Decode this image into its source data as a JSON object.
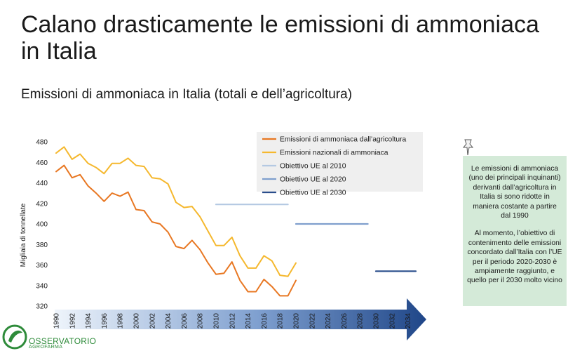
{
  "slide": {
    "title": "Calano drasticamente le emissioni di ammoniaca in Italia",
    "subtitle": "Emissioni di ammoniaca in Italia (totali e dell’agricoltura)"
  },
  "note": {
    "paragraph1": "Le emissioni di ammoniaca (uno dei principali inquinanti) derivanti dall’agricoltura in Italia si sono ridotte in maniera costante a partire dal 1990",
    "paragraph2": "Al momento, l’obiettivo di contenimento delle emissioni concordato dall’Italia con l’UE per il periodo 2020-2030 è ampiamente raggiunto, e quello per il 2030 molto vicino"
  },
  "logo": {
    "name": "OSSERVATORIO",
    "subname": "AGROFARMA"
  },
  "colors": {
    "agri": "#e87722",
    "total": "#f5b82e",
    "t2010": "#b4c9e2",
    "t2020": "#7f9fcd",
    "t2030": "#2a4e8c",
    "note_bg": "#d4ead8",
    "logo_green": "#2e8b3a"
  },
  "chart_data": {
    "type": "line",
    "title": "",
    "xlabel": "",
    "ylabel": "Migliaia di tonnellate",
    "xlim": [
      1990,
      2034
    ],
    "ylim": [
      320,
      480
    ],
    "x_ticks": [
      1990,
      1992,
      1994,
      1996,
      1998,
      2000,
      2002,
      2004,
      2006,
      2008,
      2010,
      2012,
      2014,
      2016,
      2018,
      2020,
      2022,
      2024,
      2026,
      2028,
      2030,
      2032,
      2034
    ],
    "y_ticks": [
      320,
      340,
      360,
      380,
      400,
      420,
      440,
      460,
      480
    ],
    "legend_position": "top-right",
    "series": [
      {
        "name": "Emissioni di ammoniaca dall’agricoltura",
        "color": "#e87722",
        "x": [
          1990,
          1991,
          1992,
          1993,
          1994,
          1995,
          1996,
          1997,
          1998,
          1999,
          2000,
          2001,
          2002,
          2003,
          2004,
          2005,
          2006,
          2007,
          2008,
          2009,
          2010,
          2011,
          2012,
          2013,
          2014,
          2015,
          2016,
          2017,
          2018,
          2019,
          2020
        ],
        "values": [
          451,
          457,
          445,
          448,
          437,
          430,
          422,
          430,
          427,
          431,
          414,
          413,
          402,
          400,
          392,
          378,
          376,
          384,
          375,
          362,
          351,
          352,
          363,
          345,
          334,
          334,
          346,
          339,
          330,
          330,
          345
        ]
      },
      {
        "name": "Emissioni nazionali di ammoniaca",
        "color": "#f5b82e",
        "x": [
          1990,
          1991,
          1992,
          1993,
          1994,
          1995,
          1996,
          1997,
          1998,
          1999,
          2000,
          2001,
          2002,
          2003,
          2004,
          2005,
          2006,
          2007,
          2008,
          2009,
          2010,
          2011,
          2012,
          2013,
          2014,
          2015,
          2016,
          2017,
          2018,
          2019,
          2020
        ],
        "values": [
          469,
          475,
          463,
          468,
          459,
          455,
          449,
          459,
          459,
          464,
          457,
          456,
          445,
          444,
          439,
          421,
          416,
          417,
          407,
          393,
          379,
          379,
          387,
          369,
          357,
          357,
          369,
          364,
          350,
          349,
          362
        ]
      },
      {
        "name": "Obiettivo UE al 2010",
        "color": "#b4c9e2",
        "x": [
          2010,
          2019
        ],
        "values": [
          419,
          419
        ]
      },
      {
        "name": "Obiettivo UE al 2020",
        "color": "#7f9fcd",
        "x": [
          2020,
          2029
        ],
        "values": [
          400,
          400
        ]
      },
      {
        "name": "Obiettivo UE al 2030",
        "color": "#2a4e8c",
        "x": [
          2030,
          2035
        ],
        "values": [
          354,
          354
        ]
      }
    ]
  }
}
